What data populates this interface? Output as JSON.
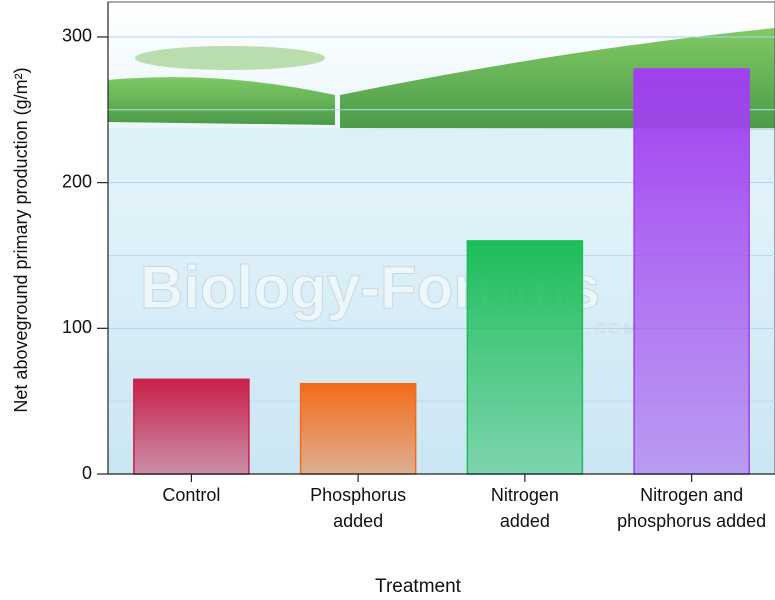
{
  "chart_data": {
    "type": "bar",
    "x_label": "Treatment",
    "y_label": "Net aboveground primary production (g/m²)",
    "categories": [
      "Control",
      "Phosphorus added",
      "Nitrogen added",
      "Nitrogen and phosphorus added"
    ],
    "values": [
      65,
      62,
      160,
      278
    ],
    "colors": [
      "#c8204a",
      "#f26b1a",
      "#1dbd5a",
      "#a040f0"
    ],
    "ylim": [
      0,
      324
    ],
    "yticks": [
      0,
      100,
      200,
      300
    ],
    "minor_yticks": [
      50,
      150,
      250
    ],
    "grid": true,
    "watermark": "Biology-Forums",
    "watermark_suffix": ".COM"
  }
}
